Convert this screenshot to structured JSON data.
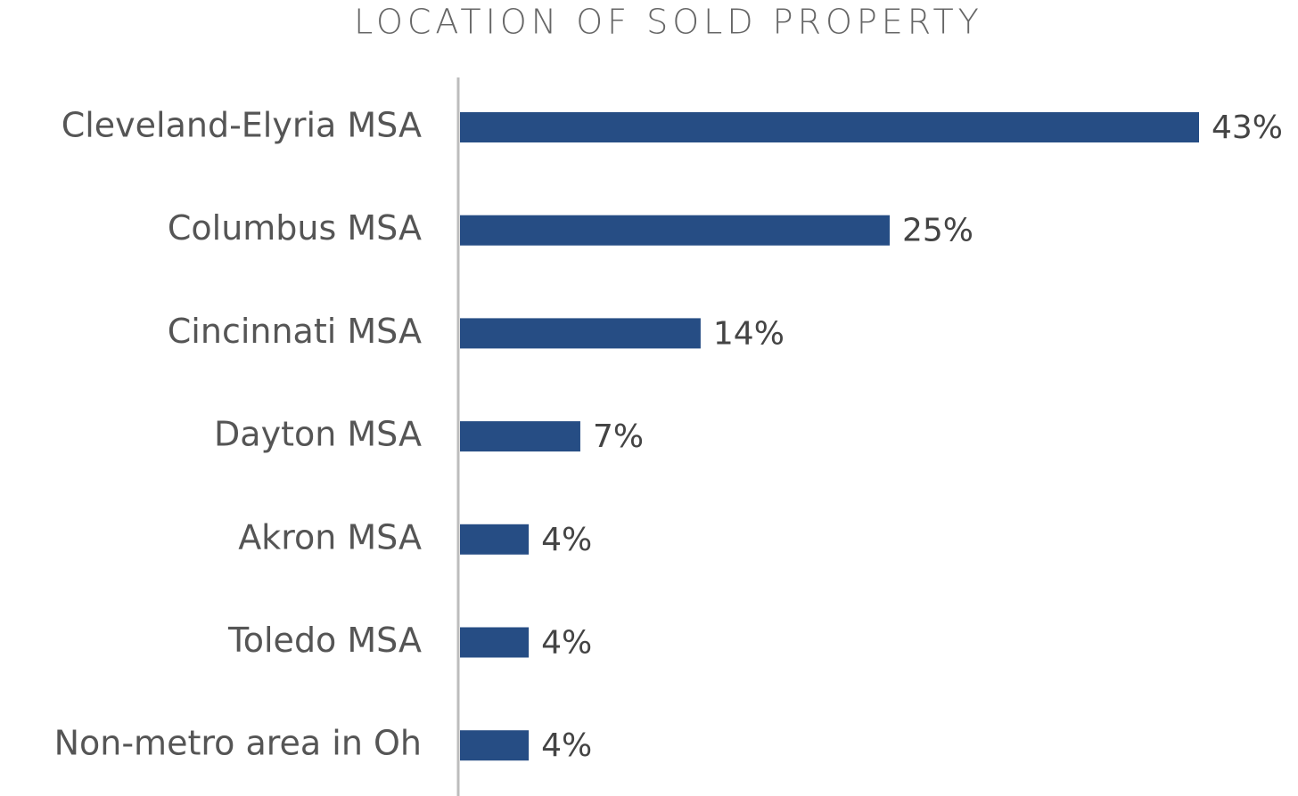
{
  "chart_data": {
    "type": "bar",
    "orientation": "horizontal",
    "title": "LOCATION OF SOLD PROPERTY",
    "categories": [
      "Cleveland-Elyria MSA",
      "Columbus MSA",
      "Cincinnati MSA",
      "Dayton MSA",
      "Akron MSA",
      "Toledo MSA",
      "Non-metro area in Oh"
    ],
    "values": [
      43,
      25,
      14,
      7,
      4,
      4,
      4
    ],
    "value_labels": [
      "43%",
      "25%",
      "14%",
      "7%",
      "4%",
      "4%",
      "4%"
    ],
    "color": "#264d84"
  }
}
